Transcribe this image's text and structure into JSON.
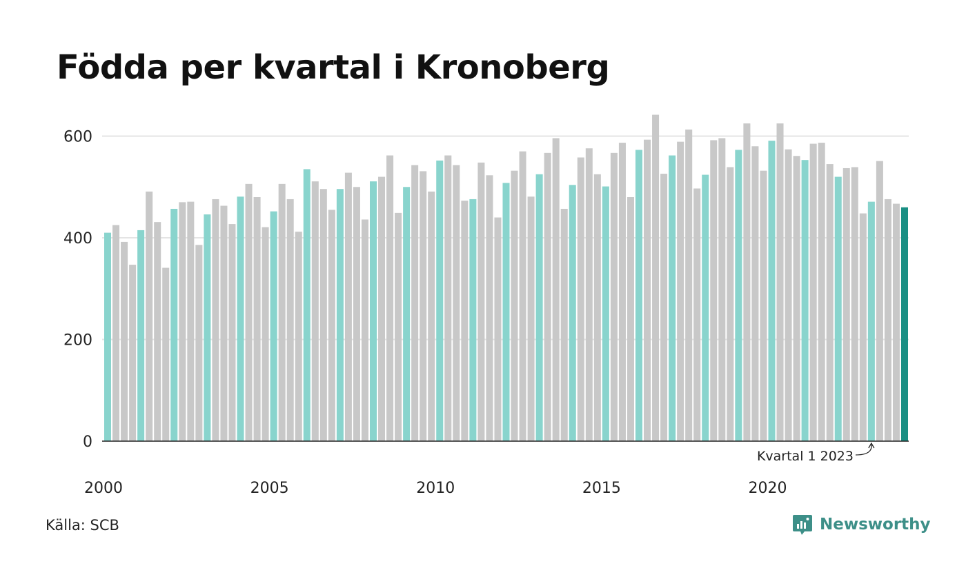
{
  "header": {
    "title": "Födda per kvartal i Kronoberg"
  },
  "footer": {
    "source": "Källa: SCB",
    "brand": "Newsworthy",
    "brand_icon": "newsworthy-logo-icon"
  },
  "colors": {
    "highlight_quarter": "#89d4cd",
    "other_quarter": "#c8c8c8",
    "latest": "#1a8f84",
    "grid": "#e4e4e4",
    "axis": "#222222"
  },
  "chart_data": {
    "type": "bar",
    "title": "Födda per kvartal i Kronoberg",
    "xlabel": "",
    "ylabel": "",
    "ylim": [
      0,
      650
    ],
    "yticks": [
      0,
      200,
      400,
      600
    ],
    "xtick_labels": [
      "2000",
      "2005",
      "2010",
      "2015",
      "2020"
    ],
    "grid": true,
    "annotation": {
      "text": "Kvartal 1 2023",
      "target_quarter": "2023 K1"
    },
    "start_year": 2000,
    "values": [
      410,
      425,
      392,
      347,
      415,
      491,
      431,
      341,
      457,
      470,
      471,
      386,
      446,
      476,
      463,
      427,
      481,
      506,
      480,
      421,
      452,
      506,
      476,
      412,
      535,
      511,
      496,
      455,
      496,
      528,
      500,
      436,
      511,
      520,
      562,
      449,
      500,
      543,
      531,
      491,
      552,
      562,
      543,
      473,
      476,
      548,
      523,
      440,
      508,
      532,
      570,
      481,
      525,
      567,
      596,
      457,
      504,
      558,
      576,
      525,
      501,
      567,
      587,
      480,
      573,
      593,
      642,
      526,
      562,
      589,
      613,
      497,
      524,
      592,
      596,
      539,
      573,
      625,
      580,
      532,
      591,
      625,
      574,
      561,
      553,
      585,
      587,
      545,
      520,
      537,
      539,
      448,
      471,
      551,
      476,
      467,
      460
    ]
  }
}
